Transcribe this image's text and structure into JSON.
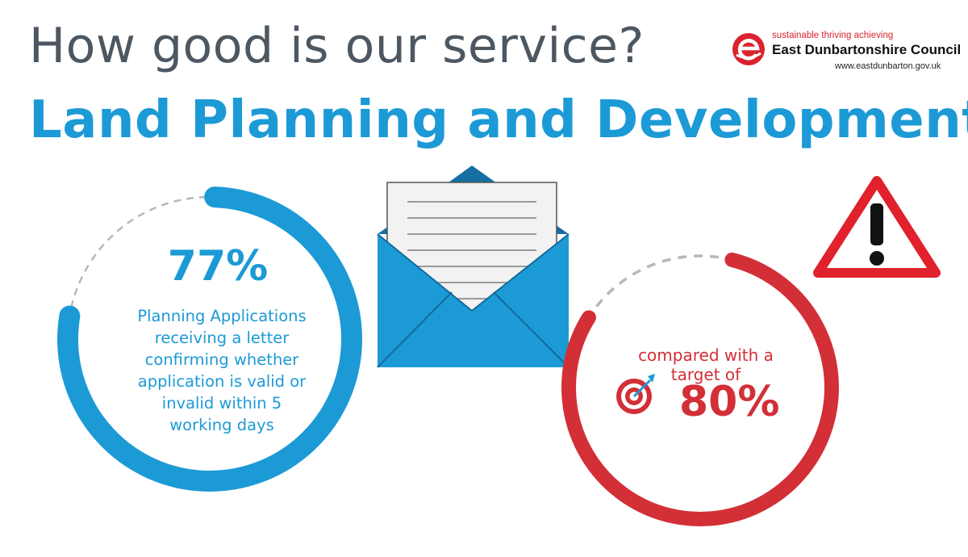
{
  "header": {
    "title": "How good is our service?",
    "subtitle": "Land Planning and Development"
  },
  "logo": {
    "tagline": "sustainable thriving achieving",
    "name": "East Dunbartonshire Council",
    "url": "www.eastdunbarton.gov.uk"
  },
  "stat": {
    "percent_label": "77%",
    "value": 77,
    "description": "Planning Applications receiving a letter confirming whether application is valid or invalid within 5 working days"
  },
  "target": {
    "compare_text": "compared with a target of",
    "percent_label": "80%",
    "value": 80
  },
  "icons": [
    "envelope-letter-icon",
    "warning-triangle-icon",
    "target-dartboard-icon"
  ],
  "colors": {
    "headline": "#4d5761",
    "brand_blue": "#1c9ad6",
    "alert_red": "#d32f37",
    "dash_grey": "#b8b8b8"
  }
}
